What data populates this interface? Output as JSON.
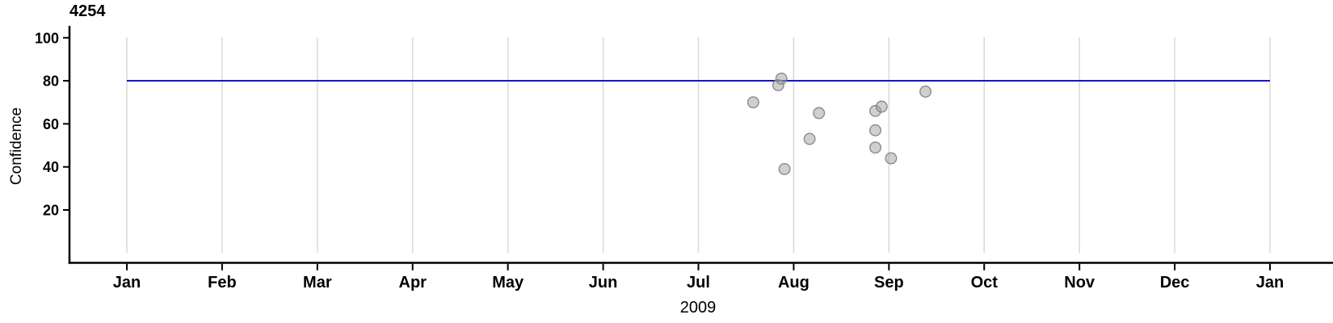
{
  "chart_data": {
    "type": "scatter",
    "title": "4254",
    "xlabel": "2009",
    "ylabel": "Confidence",
    "x_axis": {
      "start_date": "2009-01-01",
      "end_date": "2010-01-01",
      "tick_labels": [
        "Jan",
        "Feb",
        "Mar",
        "Apr",
        "May",
        "Jun",
        "Jul",
        "Aug",
        "Sep",
        "Oct",
        "Nov",
        "Dec",
        "Jan"
      ],
      "grid": true
    },
    "y_axis": {
      "ticks": [
        20,
        40,
        60,
        80,
        100
      ],
      "ylim": [
        0,
        105
      ]
    },
    "reference_line": {
      "value": 80,
      "x_start": "2009-01-01",
      "x_end": "2010-01-01"
    },
    "points": [
      {
        "date": "2009-07-20",
        "confidence": 70
      },
      {
        "date": "2009-07-28",
        "confidence": 78
      },
      {
        "date": "2009-07-29",
        "confidence": 81
      },
      {
        "date": "2009-07-30",
        "confidence": 39
      },
      {
        "date": "2009-08-07",
        "confidence": 53
      },
      {
        "date": "2009-08-10",
        "confidence": 65
      },
      {
        "date": "2009-08-28",
        "confidence": 66
      },
      {
        "date": "2009-08-28",
        "confidence": 57
      },
      {
        "date": "2009-08-28",
        "confidence": 49
      },
      {
        "date": "2009-08-30",
        "confidence": 68
      },
      {
        "date": "2009-09-02",
        "confidence": 44
      },
      {
        "date": "2009-09-13",
        "confidence": 75
      }
    ],
    "legend": null,
    "colors": {
      "axis": "#000000",
      "grid": "#d9d9d9",
      "reference_line": "#1414cc",
      "point_fill": "#a0a0a0",
      "point_stroke": "#7d7d7d",
      "background": "#ffffff"
    }
  }
}
